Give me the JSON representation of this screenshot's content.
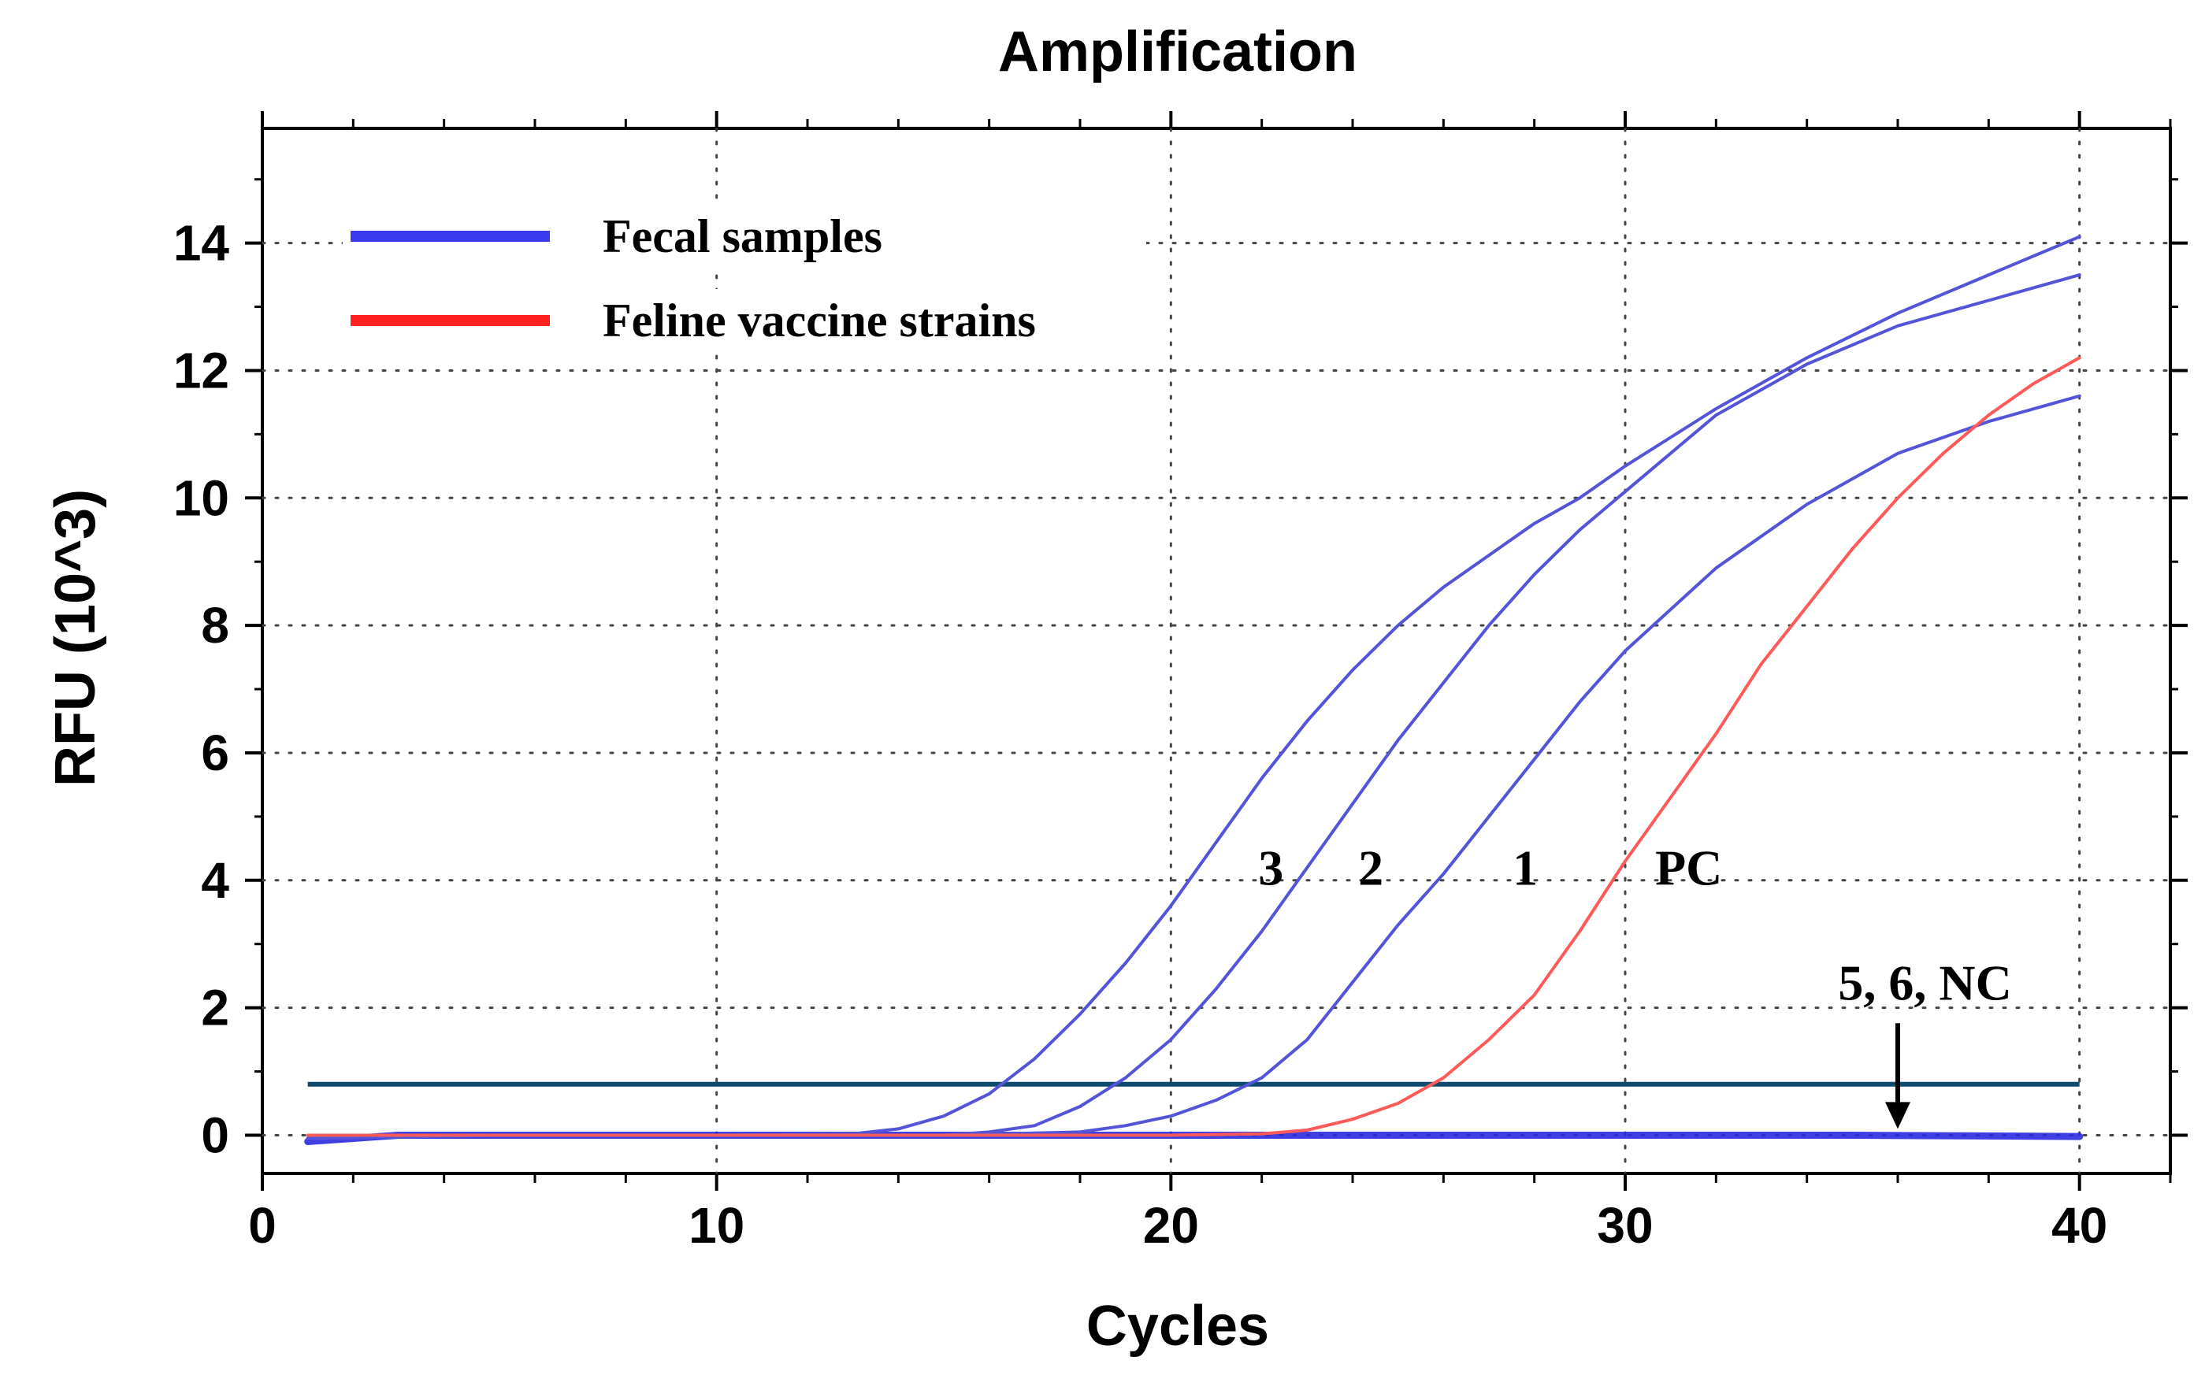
{
  "chart_data": {
    "type": "line",
    "title": "Amplification",
    "xlabel": "Cycles",
    "ylabel": "RFU (10^3)",
    "xlim": [
      0,
      42
    ],
    "ylim": [
      -0.6,
      15.8
    ],
    "xticks": [
      0,
      10,
      20,
      30,
      40
    ],
    "xtick_labels": [
      "0",
      "10",
      "20",
      "30",
      "40"
    ],
    "yticks": [
      0,
      2,
      4,
      6,
      8,
      10,
      12,
      14
    ],
    "ytick_labels": [
      "0",
      "2",
      "4",
      "6",
      "8",
      "10",
      "12",
      "14"
    ],
    "grid": true,
    "legend_position": "top-left",
    "legend": [
      {
        "label": "Fecal samples",
        "color": "#3a3aee"
      },
      {
        "label": "Feline vaccine strains",
        "color": "#ff2020"
      }
    ],
    "threshold": {
      "y": 0.8,
      "color": "#0e4a6e"
    },
    "series": [
      {
        "name": "3",
        "group": "Fecal samples",
        "color": "#5454d8",
        "x": [
          1,
          5,
          10,
          13,
          14,
          15,
          16,
          17,
          18,
          19,
          20,
          21,
          22,
          23,
          24,
          25,
          26,
          27,
          28,
          29,
          30,
          32,
          34,
          36,
          38,
          40
        ],
        "y": [
          -0.05,
          0,
          0,
          0.02,
          0.1,
          0.3,
          0.65,
          1.2,
          1.9,
          2.7,
          3.6,
          4.6,
          5.6,
          6.5,
          7.3,
          8.0,
          8.6,
          9.1,
          9.6,
          10.0,
          10.5,
          11.4,
          12.2,
          12.9,
          13.5,
          14.1
        ]
      },
      {
        "name": "2",
        "group": "Fecal samples",
        "color": "#5454d8",
        "x": [
          1,
          5,
          10,
          15,
          16,
          17,
          18,
          19,
          20,
          21,
          22,
          23,
          24,
          25,
          26,
          27,
          28,
          29,
          30,
          32,
          34,
          36,
          38,
          40
        ],
        "y": [
          -0.05,
          0,
          0,
          0,
          0.05,
          0.15,
          0.45,
          0.9,
          1.5,
          2.3,
          3.2,
          4.2,
          5.2,
          6.2,
          7.1,
          8.0,
          8.8,
          9.5,
          10.1,
          11.3,
          12.1,
          12.7,
          13.1,
          13.5
        ]
      },
      {
        "name": "1",
        "group": "Fecal samples",
        "color": "#5454d8",
        "x": [
          1,
          5,
          10,
          15,
          18,
          19,
          20,
          21,
          22,
          23,
          24,
          25,
          26,
          27,
          28,
          29,
          30,
          32,
          34,
          36,
          38,
          40
        ],
        "y": [
          -0.05,
          0,
          0,
          0,
          0.05,
          0.15,
          0.3,
          0.55,
          0.9,
          1.5,
          2.4,
          3.3,
          4.1,
          5.0,
          5.9,
          6.8,
          7.6,
          8.9,
          9.9,
          10.7,
          11.2,
          11.6
        ]
      },
      {
        "name": "PC",
        "group": "Feline vaccine strains",
        "color": "#ff5a5a",
        "x": [
          1,
          5,
          10,
          15,
          20,
          22,
          23,
          24,
          25,
          26,
          27,
          28,
          29,
          30,
          31,
          32,
          33,
          34,
          35,
          36,
          37,
          38,
          39,
          40
        ],
        "y": [
          0,
          0,
          0,
          0,
          0,
          0.02,
          0.08,
          0.25,
          0.5,
          0.9,
          1.5,
          2.2,
          3.2,
          4.3,
          5.3,
          6.3,
          7.4,
          8.3,
          9.2,
          10.0,
          10.7,
          11.3,
          11.8,
          12.2
        ]
      },
      {
        "name": "5, 6, NC",
        "group": "Fecal samples",
        "color": "#2a2ae0",
        "x": [
          1,
          3,
          5,
          8,
          10,
          15,
          20,
          25,
          30,
          35,
          40
        ],
        "y": [
          -0.1,
          0,
          0,
          0,
          0,
          0,
          0,
          0,
          0,
          0,
          -0.02
        ]
      }
    ],
    "annotations": [
      {
        "text": "3",
        "x": 22.2,
        "y": 4.2
      },
      {
        "text": "2",
        "x": 24.4,
        "y": 4.2
      },
      {
        "text": "1",
        "x": 27.8,
        "y": 4.2
      },
      {
        "text": "PC",
        "x": 31.4,
        "y": 4.2
      },
      {
        "text": "5, 6, NC",
        "x": 36.6,
        "y": 2.4,
        "arrow_to": {
          "x": 36.0,
          "y": 0.05
        }
      }
    ]
  }
}
